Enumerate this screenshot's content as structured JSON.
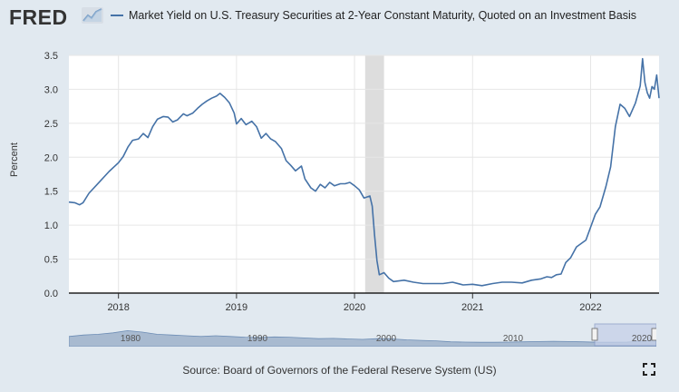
{
  "header": {
    "logo": "FRED",
    "title": "Market Yield on U.S. Treasury Securities at 2-Year Constant Maturity, Quoted on an Investment Basis"
  },
  "footer": {
    "source": "Source: Board of Governors of the Federal Reserve System (US)"
  },
  "icons": {
    "logo_graph": "chart-logo-icon",
    "fullscreen": "fullscreen-icon"
  },
  "colors": {
    "series": "#4572a7",
    "recession": "#dddddd",
    "page_bg": "#e1e9f0",
    "plot_bg": "#ffffff",
    "navigator_fill": "#a8bad0",
    "navigator_selection": "#c5d0e8"
  },
  "chart_data": {
    "type": "line",
    "title": "Market Yield on U.S. Treasury Securities at 2-Year Constant Maturity, Quoted on an Investment Basis",
    "xlabel": "",
    "ylabel": "Percent",
    "xlim": [
      2017.58,
      2022.58
    ],
    "ylim": [
      0,
      3.5
    ],
    "y_ticks": [
      "0.0",
      "0.5",
      "1.0",
      "1.5",
      "2.0",
      "2.5",
      "3.0",
      "3.5"
    ],
    "x_ticks": [
      "2018",
      "2019",
      "2020",
      "2021",
      "2022"
    ],
    "grid": true,
    "legend": "top-left",
    "recession": {
      "start": 2020.09,
      "end": 2020.25
    },
    "series": [
      {
        "name": "Market Yield on U.S. Treasury Securities at 2-Year Constant Maturity, Quoted on an Investment Basis",
        "x": [
          2017.58,
          2017.63,
          2017.67,
          2017.7,
          2017.75,
          2017.83,
          2017.92,
          2018.0,
          2018.04,
          2018.08,
          2018.12,
          2018.17,
          2018.21,
          2018.25,
          2018.29,
          2018.33,
          2018.38,
          2018.42,
          2018.46,
          2018.5,
          2018.55,
          2018.58,
          2018.63,
          2018.67,
          2018.71,
          2018.75,
          2018.79,
          2018.83,
          2018.86,
          2018.9,
          2018.94,
          2018.98,
          2019.0,
          2019.04,
          2019.08,
          2019.13,
          2019.17,
          2019.21,
          2019.25,
          2019.29,
          2019.33,
          2019.38,
          2019.42,
          2019.46,
          2019.5,
          2019.55,
          2019.58,
          2019.63,
          2019.67,
          2019.71,
          2019.75,
          2019.79,
          2019.83,
          2019.88,
          2019.92,
          2019.96,
          2020.0,
          2020.04,
          2020.08,
          2020.13,
          2020.15,
          2020.17,
          2020.19,
          2020.21,
          2020.25,
          2020.29,
          2020.33,
          2020.42,
          2020.5,
          2020.58,
          2020.67,
          2020.75,
          2020.83,
          2020.92,
          2021.0,
          2021.08,
          2021.17,
          2021.25,
          2021.33,
          2021.42,
          2021.5,
          2021.58,
          2021.63,
          2021.67,
          2021.71,
          2021.75,
          2021.79,
          2021.83,
          2021.88,
          2021.92,
          2021.96,
          2022.0,
          2022.04,
          2022.08,
          2022.13,
          2022.17,
          2022.21,
          2022.25,
          2022.29,
          2022.33,
          2022.38,
          2022.42,
          2022.44,
          2022.46,
          2022.48,
          2022.5,
          2022.52,
          2022.54,
          2022.56,
          2022.58
        ],
        "values": [
          1.34,
          1.33,
          1.3,
          1.33,
          1.47,
          1.62,
          1.79,
          1.92,
          2.01,
          2.15,
          2.25,
          2.27,
          2.35,
          2.29,
          2.45,
          2.56,
          2.6,
          2.59,
          2.52,
          2.55,
          2.64,
          2.61,
          2.65,
          2.72,
          2.78,
          2.83,
          2.87,
          2.9,
          2.94,
          2.88,
          2.8,
          2.65,
          2.49,
          2.57,
          2.48,
          2.53,
          2.45,
          2.28,
          2.35,
          2.27,
          2.23,
          2.13,
          1.95,
          1.88,
          1.8,
          1.87,
          1.68,
          1.55,
          1.5,
          1.6,
          1.55,
          1.63,
          1.58,
          1.61,
          1.61,
          1.63,
          1.58,
          1.52,
          1.4,
          1.43,
          1.28,
          0.85,
          0.48,
          0.27,
          0.3,
          0.22,
          0.17,
          0.19,
          0.16,
          0.14,
          0.14,
          0.14,
          0.16,
          0.12,
          0.13,
          0.11,
          0.14,
          0.16,
          0.16,
          0.15,
          0.19,
          0.21,
          0.24,
          0.23,
          0.27,
          0.28,
          0.45,
          0.52,
          0.68,
          0.73,
          0.78,
          0.97,
          1.16,
          1.27,
          1.57,
          1.86,
          2.45,
          2.78,
          2.72,
          2.6,
          2.8,
          3.05,
          3.45,
          3.1,
          2.95,
          2.87,
          3.04,
          3.0,
          3.21,
          2.87
        ]
      }
    ]
  },
  "navigator": {
    "labels": [
      "1980",
      "1990",
      "2000",
      "2010",
      "2020"
    ]
  }
}
